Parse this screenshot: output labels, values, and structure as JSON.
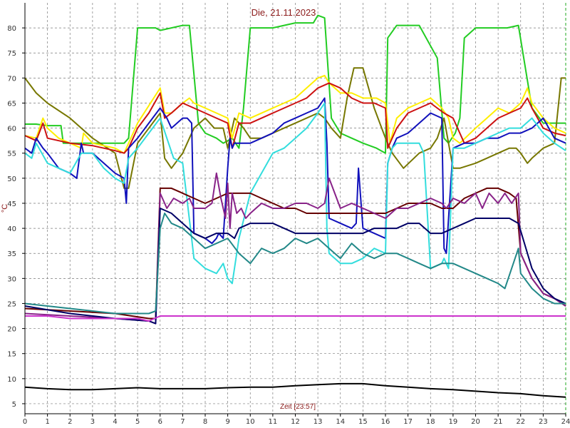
{
  "chart_data": {
    "type": "line",
    "title": "Die, 21.11.2023",
    "xlabel": "Zeit [23:57]",
    "ylabel": "°C",
    "xlim": [
      0,
      24
    ],
    "ylim": [
      3,
      85
    ],
    "grid": true,
    "x_ticks": [
      "0",
      "1",
      "2",
      "3",
      "4",
      "5",
      "6",
      "7",
      "8",
      "9",
      "10",
      "11",
      "12",
      "13",
      "14",
      "15",
      "16",
      "17",
      "18",
      "19",
      "20",
      "21",
      "22",
      "23",
      "24"
    ],
    "y_ticks": [
      "5",
      "10",
      "15",
      "20",
      "25",
      "30",
      "35",
      "40",
      "45",
      "50",
      "55",
      "60",
      "65",
      "70",
      "75",
      "80"
    ],
    "series": [
      {
        "color": "#22cc22",
        "x": [
          0,
          0.5,
          1,
          1.6,
          1.7,
          4.4,
          4.6,
          5,
          5.8,
          6,
          6.5,
          7,
          7.3,
          7.7,
          8,
          8.5,
          8.8,
          9.2,
          9.5,
          9.7,
          10,
          11,
          12,
          12.8,
          13,
          13.3,
          13.6,
          14,
          14.5,
          15,
          15.6,
          16,
          16.1,
          16.5,
          17,
          17.5,
          18.3,
          18.6,
          18.8,
          19.1,
          19.3,
          19.5,
          20,
          20.5,
          21,
          21.4,
          21.9,
          22.1,
          22.5,
          23,
          23.5,
          24
        ],
        "y": [
          60.8,
          60.8,
          60.5,
          60.5,
          57,
          57,
          58,
          80,
          80,
          79.5,
          80,
          80.5,
          80.5,
          61,
          59,
          58,
          57,
          58,
          56,
          64,
          80,
          80,
          81,
          81,
          82.5,
          82,
          62,
          59,
          58,
          57,
          56,
          55,
          78,
          80.5,
          80.5,
          80.5,
          74,
          58,
          57,
          59,
          62,
          78,
          80,
          80,
          80,
          80,
          80.5,
          75,
          64,
          61,
          61,
          61
        ]
      },
      {
        "color": "#777700",
        "x": [
          0,
          0.5,
          1,
          2,
          3,
          4,
          4.4,
          4.6,
          5,
          6,
          6.2,
          6.5,
          7,
          7.5,
          8,
          8.4,
          8.8,
          9,
          9.3,
          9.7,
          10,
          10.5,
          11,
          11.5,
          12,
          12.5,
          13,
          13.3,
          13.6,
          14,
          14.3,
          14.6,
          15,
          15.5,
          16,
          16.1,
          16.3,
          16.8,
          17.5,
          18,
          18.3,
          18.6,
          18.8,
          19,
          19.3,
          20,
          20.5,
          21,
          21.5,
          21.8,
          22,
          22.3,
          22.5,
          23,
          23.5,
          23.8,
          24
        ],
        "y": [
          70,
          67,
          65,
          62,
          58,
          55,
          48,
          48,
          57,
          63,
          54,
          52,
          55,
          60,
          62,
          60,
          60,
          56,
          62,
          60,
          58,
          58,
          59,
          60,
          61,
          62,
          63,
          62,
          60,
          58,
          66,
          72,
          72,
          64,
          58,
          57,
          55,
          52,
          55,
          56,
          58,
          62,
          57,
          52,
          52,
          53,
          54,
          55,
          56,
          56,
          55,
          53,
          54,
          56,
          57,
          70,
          70
        ]
      },
      {
        "color": "#ffee00",
        "x": [
          0,
          0.5,
          0.8,
          1,
          1.5,
          2,
          2.5,
          2.6,
          3,
          4,
          4.4,
          4.6,
          5,
          6,
          6.2,
          6.5,
          7,
          7.3,
          7.5,
          8,
          8.5,
          9,
          9.2,
          9.5,
          10,
          11,
          12,
          12.5,
          13,
          13.3,
          13.5,
          14,
          14.5,
          15,
          15.6,
          16,
          16.2,
          16.5,
          17,
          17.5,
          18,
          18.5,
          18.8,
          19,
          19.3,
          20,
          20.5,
          21,
          21.5,
          22,
          22.3,
          22.5,
          23,
          23.5,
          24
        ],
        "y": [
          58.5,
          58,
          62,
          60,
          58,
          57,
          56,
          59,
          57,
          56,
          55,
          57,
          61,
          68,
          63,
          63,
          65,
          66,
          65,
          64,
          63,
          62,
          58,
          63,
          62,
          64,
          66,
          68,
          70,
          70.5,
          69,
          67,
          67,
          66,
          66,
          65,
          57,
          62,
          64,
          65,
          66,
          64,
          62,
          58,
          57,
          60,
          62,
          64,
          63,
          65,
          68,
          65,
          62,
          60,
          59
        ]
      },
      {
        "color": "#cc1111",
        "x": [
          0,
          0.5,
          0.8,
          1,
          1.5,
          2,
          3,
          4,
          4.4,
          4.6,
          5,
          5.5,
          6,
          6.2,
          6.5,
          7,
          7.5,
          8,
          8.5,
          9,
          9.2,
          9.5,
          10,
          10.5,
          11,
          11.5,
          12,
          12.5,
          13,
          13.5,
          14,
          14.5,
          15,
          15.5,
          16,
          16.1,
          16.5,
          17,
          17.5,
          18,
          18.3,
          18.6,
          19,
          19.5,
          20,
          20.5,
          21,
          21.5,
          22,
          22.3,
          22.5,
          23,
          23.5,
          24
        ],
        "y": [
          58.5,
          57.5,
          61,
          58,
          57.5,
          57,
          56.5,
          55.5,
          55,
          56,
          60,
          63,
          67,
          62,
          63,
          65,
          64,
          63,
          62,
          61,
          56,
          61,
          61,
          62,
          63,
          64,
          65,
          66,
          68,
          69,
          68,
          66,
          65,
          65,
          64,
          56,
          60,
          63,
          64,
          65,
          64,
          63,
          62,
          57,
          58,
          60,
          62,
          63,
          64,
          66,
          64,
          60,
          59,
          58.5
        ]
      },
      {
        "color": "#1111bb",
        "x": [
          0,
          0.3,
          0.5,
          0.8,
          1,
          1.5,
          2,
          2.3,
          2.5,
          2.6,
          3,
          3.5,
          4,
          4.4,
          4.5,
          4.6,
          5,
          5.5,
          6,
          6.3,
          6.5,
          7,
          7.2,
          7.4,
          7.5,
          8,
          8.3,
          8.5,
          8.6,
          8.8,
          9,
          9.1,
          9.2,
          9.3,
          9.5,
          10,
          10.5,
          11,
          11.5,
          12,
          12.5,
          13,
          13.3,
          13.4,
          13.5,
          14,
          14.5,
          14.7,
          14.8,
          15,
          15.5,
          16,
          16.1,
          16.3,
          16.5,
          17,
          17.5,
          18,
          18.5,
          18.6,
          18.7,
          19,
          19.5,
          20,
          20.5,
          21,
          21.5,
          22,
          22.5,
          23,
          23.5,
          24
        ],
        "y": [
          56,
          55,
          58,
          56,
          55,
          52,
          51,
          50,
          57,
          55,
          55,
          53,
          51,
          50,
          45,
          56,
          58,
          61,
          64,
          62,
          60,
          62,
          62,
          61,
          39,
          38,
          37,
          38,
          39,
          38,
          52,
          58,
          56,
          57,
          57,
          57,
          58,
          59,
          61,
          62,
          63,
          64,
          66,
          57,
          42,
          41,
          40,
          41,
          52,
          40,
          39,
          38,
          53,
          56,
          58,
          59,
          61,
          63,
          62,
          36,
          35,
          56,
          57,
          57,
          58,
          58,
          59,
          59,
          60,
          62,
          58,
          57
        ]
      },
      {
        "color": "#33dddd",
        "x": [
          0,
          0.3,
          0.5,
          1,
          1.5,
          2,
          2.5,
          3,
          3.5,
          4,
          4.4,
          4.6,
          5,
          5.5,
          6,
          6.3,
          6.6,
          7,
          7.4,
          7.5,
          8,
          8.5,
          8.8,
          9,
          9.2,
          9.5,
          10,
          10.5,
          11,
          11.5,
          12,
          12.5,
          13,
          13.3,
          13.4,
          13.5,
          14,
          14.5,
          15,
          15.5,
          16,
          16.1,
          16.3,
          16.5,
          17,
          17.5,
          17.7,
          18,
          18.5,
          18.6,
          18.8,
          19,
          19.5,
          20,
          20.5,
          21,
          21.5,
          22,
          22.5,
          23,
          23.5,
          24
        ],
        "y": [
          55,
          54,
          57,
          53,
          52,
          51,
          55,
          55,
          52,
          50,
          49,
          54,
          56,
          59,
          62,
          58,
          54,
          53,
          38,
          34,
          32,
          31,
          33,
          30,
          29,
          38,
          47,
          51,
          55,
          56,
          58,
          60,
          63,
          65,
          40,
          35,
          33,
          33,
          34,
          36,
          35,
          53,
          56,
          57,
          57,
          57,
          55,
          32,
          33,
          34,
          32,
          56,
          56,
          57,
          58,
          59,
          60,
          60,
          62,
          59,
          57,
          55.5
        ]
      },
      {
        "color": "#660000",
        "x": [
          0,
          4,
          5.5,
          5.8,
          6,
          6.5,
          7,
          7.5,
          8,
          8.5,
          9,
          9.5,
          10,
          10.5,
          11,
          11.5,
          12,
          12.5,
          13,
          14,
          15,
          16,
          16.5,
          17,
          17.5,
          18,
          18.5,
          19,
          19.5,
          20,
          20.5,
          21,
          21.5,
          21.8,
          22,
          22.5,
          23,
          23.5,
          24
        ],
        "y": [
          24,
          23,
          22,
          22,
          48,
          48,
          47,
          46,
          45,
          46,
          47,
          47,
          47,
          46,
          45,
          44,
          44,
          43,
          43,
          43,
          43,
          43,
          44,
          45,
          45,
          45,
          44,
          44,
          46,
          47,
          48,
          48,
          47,
          46,
          35,
          30,
          27,
          26,
          24.5
        ]
      },
      {
        "color": "#882288",
        "x": [
          0,
          2,
          4,
          5.5,
          5.8,
          6,
          6.3,
          6.6,
          7,
          7.3,
          7.5,
          8,
          8.3,
          8.5,
          8.7,
          8.9,
          9,
          9.1,
          9.2,
          9.4,
          9.6,
          9.8,
          10,
          10.5,
          11,
          11.5,
          12,
          12.5,
          13,
          13.3,
          13.5,
          14,
          14.5,
          15,
          15.5,
          16,
          16.5,
          17,
          17.5,
          18,
          18.5,
          18.7,
          19,
          19.5,
          20,
          20.3,
          20.6,
          21,
          21.3,
          21.6,
          21.9,
          22,
          22.5,
          23,
          23.5,
          24
        ],
        "y": [
          23,
          22.5,
          22,
          21.5,
          21,
          47,
          44,
          46,
          45,
          46,
          44,
          44,
          45,
          51,
          46,
          42,
          49,
          40,
          47,
          43,
          44,
          42,
          43,
          45,
          44,
          44,
          45,
          45,
          44,
          45,
          50,
          44,
          45,
          44,
          43,
          42,
          44,
          44,
          45,
          46,
          45,
          44,
          46,
          45,
          47,
          44,
          47,
          45,
          47,
          45,
          47,
          35,
          30,
          27,
          26,
          24.5
        ]
      },
      {
        "color": "#000066",
        "x": [
          0,
          2,
          4,
          5.5,
          5.8,
          6,
          6.5,
          7,
          7.5,
          8,
          8.5,
          9,
          9.3,
          9.5,
          10,
          10.5,
          11,
          11.5,
          12,
          12.5,
          13,
          13.5,
          14,
          14.5,
          15,
          15.5,
          16,
          16.5,
          17,
          17.5,
          18,
          18.5,
          19,
          19.5,
          20,
          20.5,
          21,
          21.5,
          21.9,
          22.5,
          23,
          23.5,
          24
        ],
        "y": [
          24.5,
          23,
          22,
          21.5,
          21,
          44,
          43,
          41,
          39,
          38,
          39,
          39,
          38,
          40,
          41,
          41,
          41,
          40,
          39,
          39,
          39,
          39,
          39,
          39,
          39,
          40,
          40,
          40,
          41,
          41,
          39,
          39,
          40,
          41,
          42,
          42,
          42,
          42,
          41,
          32,
          28,
          26,
          25
        ]
      },
      {
        "color": "#228888",
        "x": [
          0,
          1,
          2,
          3,
          4,
          5.5,
          5.8,
          6,
          6.2,
          6.5,
          7,
          7.5,
          8,
          8.5,
          9,
          9.5,
          10,
          10.5,
          11,
          11.5,
          12,
          12.5,
          13,
          13.5,
          14,
          14.5,
          15,
          15.5,
          16,
          16.5,
          17,
          17.5,
          18,
          18.5,
          19,
          19.5,
          20,
          20.5,
          21,
          21.3,
          21.6,
          21.9,
          22,
          22.5,
          23,
          23.5,
          24
        ],
        "y": [
          25,
          24.5,
          24,
          23.5,
          23,
          23,
          23.5,
          40,
          43,
          41,
          40,
          38,
          36,
          37,
          38,
          35,
          33,
          36,
          35,
          36,
          38,
          37,
          38,
          36,
          34,
          37,
          35,
          34,
          35,
          35,
          34,
          33,
          32,
          33,
          33,
          32,
          31,
          30,
          29,
          28,
          32,
          36,
          31,
          28,
          26,
          25,
          25
        ]
      },
      {
        "color": "#cc33cc",
        "x": [
          0,
          1,
          2,
          3,
          4,
          5,
          5.5,
          6,
          7,
          8,
          9,
          10,
          11,
          12,
          13,
          14,
          15,
          16,
          17,
          18,
          19,
          20,
          21,
          22,
          23,
          24
        ],
        "y": [
          22.5,
          22.5,
          22,
          22,
          22,
          22,
          21.5,
          22.5,
          22.5,
          22.5,
          22.5,
          22.5,
          22.5,
          22.5,
          22.5,
          22.5,
          22.5,
          22.5,
          22.5,
          22.5,
          22.5,
          22.5,
          22.5,
          22.5,
          22.5,
          22.5
        ]
      },
      {
        "color": "#000000",
        "x": [
          0,
          1,
          2,
          3,
          4,
          5,
          6,
          7,
          8,
          9,
          10,
          11,
          12,
          13,
          14,
          15,
          16,
          17,
          18,
          19,
          20,
          21,
          22,
          23,
          24
        ],
        "y": [
          8.3,
          8,
          7.8,
          7.8,
          8,
          8.2,
          8,
          8,
          8,
          8.2,
          8.3,
          8.3,
          8.6,
          8.8,
          9,
          9,
          8.6,
          8.3,
          8,
          7.8,
          7.5,
          7.2,
          7,
          6.6,
          6.3
        ]
      }
    ]
  }
}
